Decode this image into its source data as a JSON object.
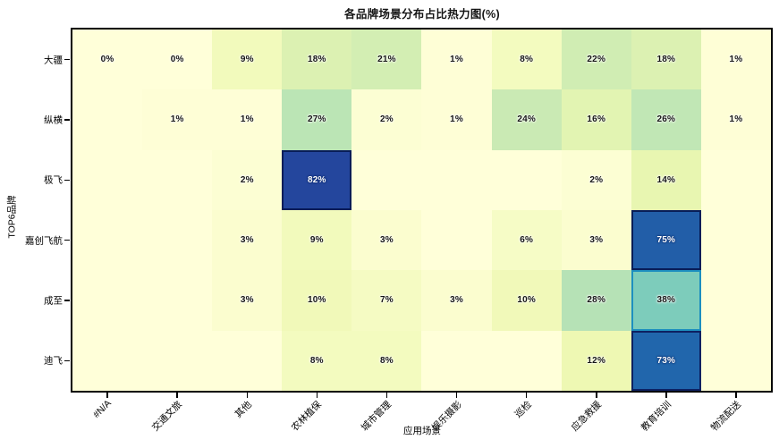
{
  "chart_data": {
    "type": "heatmap",
    "title": "各品牌场景分布占比热力图(%)",
    "xlabel": "应用场景",
    "ylabel": "TOP6品牌",
    "rows": [
      "大疆",
      "纵横",
      "极飞",
      "嘉创飞航",
      "成至",
      "迪飞"
    ],
    "columns": [
      "#N/A",
      "交通文旅",
      "其他",
      "农林植保",
      "城市管理",
      "娱乐摄影",
      "巡检",
      "应急救援",
      "教育培训",
      "物流配送"
    ],
    "values": [
      [
        0,
        0,
        9,
        18,
        21,
        1,
        8,
        22,
        18,
        1
      ],
      [
        null,
        1,
        1,
        27,
        2,
        1,
        24,
        16,
        26,
        1
      ],
      [
        null,
        null,
        2,
        82,
        null,
        null,
        null,
        2,
        14,
        null
      ],
      [
        null,
        null,
        3,
        9,
        3,
        null,
        6,
        3,
        75,
        null
      ],
      [
        null,
        null,
        3,
        10,
        7,
        3,
        10,
        28,
        38,
        null
      ],
      [
        null,
        null,
        null,
        8,
        8,
        null,
        null,
        12,
        73,
        null
      ]
    ],
    "value_suffix": "%",
    "vmin": 0,
    "vmax": 100,
    "colormap": "YlGnBu",
    "colormap_stops": [
      [
        0,
        "#ffffd9"
      ],
      [
        0.125,
        "#edf8b1"
      ],
      [
        0.25,
        "#c7e9b4"
      ],
      [
        0.375,
        "#7fcdbb"
      ],
      [
        0.5,
        "#41b6c4"
      ],
      [
        0.625,
        "#1d91c0"
      ],
      [
        0.75,
        "#225ea8"
      ],
      [
        0.875,
        "#253494"
      ],
      [
        1,
        "#081d58"
      ]
    ],
    "grid": false,
    "legend": "none",
    "colorbar": "none"
  }
}
